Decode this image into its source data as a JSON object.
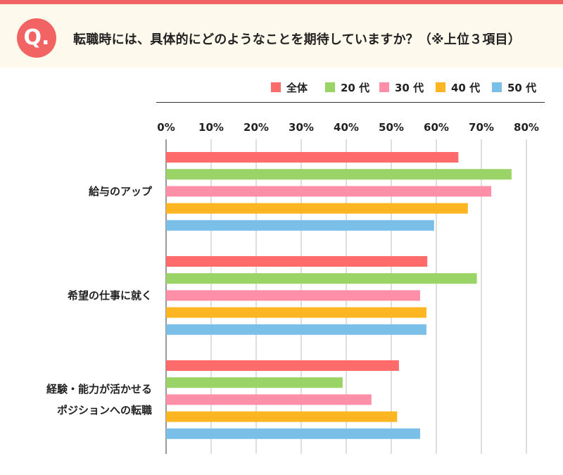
{
  "header": {
    "badge": "Q.",
    "question": "転職時には、具体的にどのようなことを期待していますか？（※上位３項目）"
  },
  "colors": {
    "topbar": "#f16565",
    "header_bg": "#fdf9ec",
    "badge": "#f26464"
  },
  "legend": [
    {
      "label": "全体",
      "color": "#ff6b6b"
    },
    {
      "label": "20 代",
      "color": "#9bd466"
    },
    {
      "label": "30 代",
      "color": "#ff8fa8"
    },
    {
      "label": "40 代",
      "color": "#fdb521"
    },
    {
      "label": "50 代",
      "color": "#79bfe8"
    }
  ],
  "chart_data": {
    "type": "bar",
    "orientation": "horizontal",
    "xlim": [
      0,
      80
    ],
    "xticks": [
      "0%",
      "10%",
      "20%",
      "30%",
      "40%",
      "50%",
      "60%",
      "70%",
      "80%"
    ],
    "grid": true,
    "categories": [
      [
        "給与のアップ"
      ],
      [
        "希望の仕事に就く"
      ],
      [
        "経験・能力が活かせる",
        "ポジションへの転職"
      ]
    ],
    "series": [
      {
        "name": "全体",
        "color": "#ff6b6b",
        "values": [
          64.9,
          58.0,
          51.7
        ]
      },
      {
        "name": "20 代",
        "color": "#9bd466",
        "values": [
          76.7,
          69.0,
          39.2
        ]
      },
      {
        "name": "30 代",
        "color": "#ff8fa8",
        "values": [
          72.2,
          56.4,
          45.6
        ]
      },
      {
        "name": "40 代",
        "color": "#fdb521",
        "values": [
          67.0,
          57.8,
          51.3
        ]
      },
      {
        "name": "50 代",
        "color": "#79bfe8",
        "values": [
          59.5,
          57.8,
          56.4
        ]
      }
    ]
  }
}
